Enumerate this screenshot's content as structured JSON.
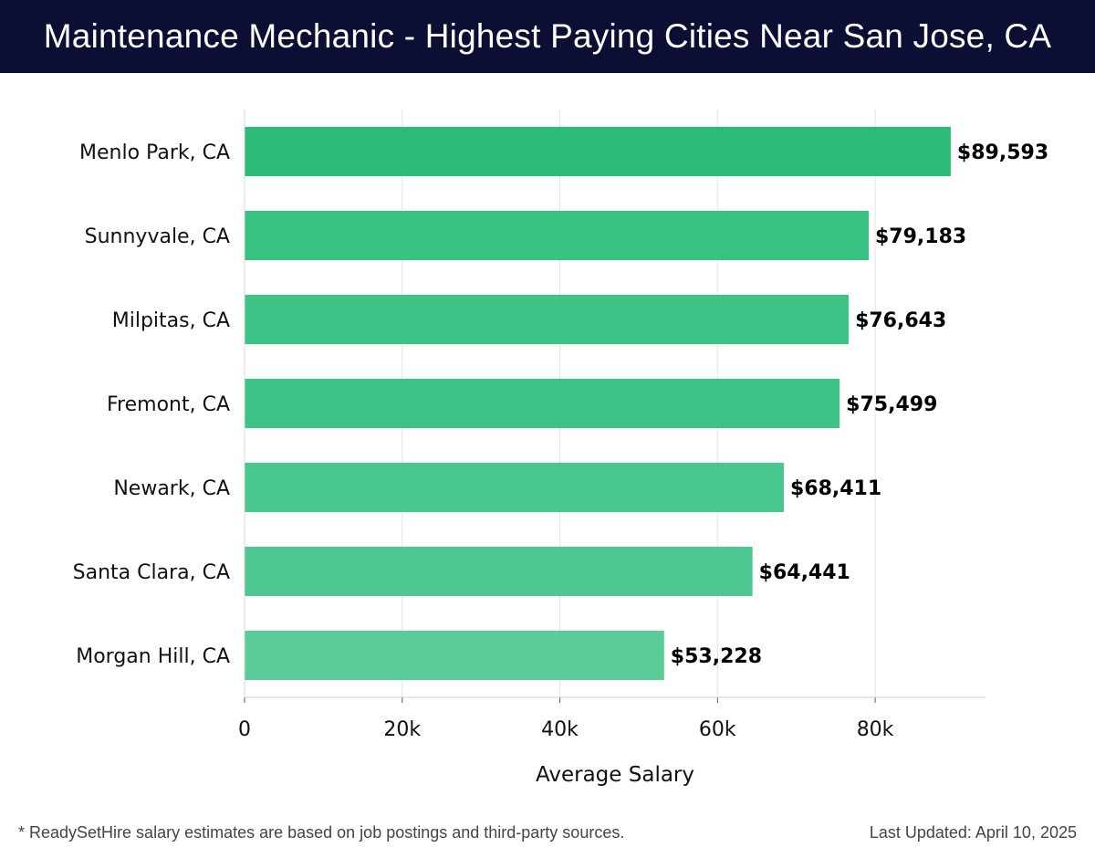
{
  "header": {
    "title": "Maintenance Mechanic - Highest Paying Cities Near San Jose, CA"
  },
  "chart_data": {
    "type": "bar",
    "orientation": "horizontal",
    "title": "Maintenance Mechanic - Highest Paying Cities Near San Jose, CA",
    "xlabel": "Average Salary",
    "ylabel": "",
    "categories": [
      "Menlo Park, CA",
      "Sunnyvale, CA",
      "Milpitas, CA",
      "Fremont, CA",
      "Newark, CA",
      "Santa Clara, CA",
      "Morgan Hill, CA"
    ],
    "values": [
      89593,
      79183,
      76643,
      75499,
      68411,
      64441,
      53228
    ],
    "value_labels": [
      "$89,593",
      "$79,183",
      "$76,643",
      "$75,499",
      "$68,411",
      "$64,441",
      "$53,228"
    ],
    "bar_colors": [
      "#2bbd78",
      "#37c282",
      "#3ec487",
      "#3cc385",
      "#47c78c",
      "#4ec891",
      "#59cc97"
    ],
    "xlim": [
      0,
      94000
    ],
    "xticks": [
      0,
      20000,
      40000,
      60000,
      80000
    ],
    "xtick_labels": [
      "0",
      "20k",
      "40k",
      "60k",
      "80k"
    ],
    "grid": "vertical",
    "legend": "none"
  },
  "footer": {
    "note": "* ReadySetHire salary estimates are based on job postings and third-party sources.",
    "updated": "Last Updated: April 10, 2025"
  }
}
